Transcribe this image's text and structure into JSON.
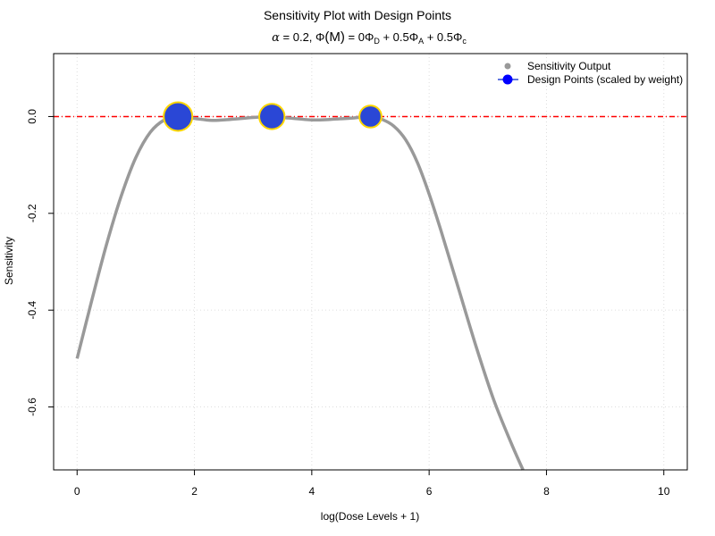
{
  "chart_data": {
    "type": "line",
    "title": "Sensitivity Plot with Design Points",
    "subtitle": {
      "alpha_symbol": "α",
      "alpha_value": " = 0.2, ",
      "phi_symbol": "Φ",
      "m_part": "(M)",
      "eq": " = 0",
      "d_sub": "D",
      "plus_a": " + 0.5",
      "a_sub": "A",
      "plus_c": " + 0.5",
      "c_sub": "c"
    },
    "xlabel": "log(Dose Levels + 1)",
    "ylabel": "Sensitivity",
    "xlim": [
      -0.4,
      10.4
    ],
    "ylim": [
      -0.73,
      0.13
    ],
    "x_ticks": [
      0,
      2,
      4,
      6,
      8,
      10
    ],
    "x_tick_labels": [
      "0",
      "2",
      "4",
      "6",
      "8",
      "10"
    ],
    "y_ticks": [
      0.0,
      -0.2,
      -0.4,
      -0.6
    ],
    "y_tick_labels": [
      "0.0",
      "-0.2",
      "-0.4",
      "-0.6"
    ],
    "grid": true,
    "reference_line": {
      "y": 0,
      "color": "#ff0000",
      "style": "dashed"
    },
    "series": [
      {
        "name": "Sensitivity Output",
        "color": "#999999",
        "x": [
          0.0,
          0.25,
          0.5,
          0.75,
          1.0,
          1.25,
          1.5,
          1.7,
          2.0,
          2.3,
          2.6,
          3.0,
          3.3,
          3.6,
          4.0,
          4.3,
          4.7,
          5.0,
          5.2,
          5.4,
          5.6,
          5.8,
          6.0,
          6.2,
          6.5,
          6.8,
          7.1,
          7.4,
          7.6
        ],
        "y": [
          -0.5,
          -0.38,
          -0.265,
          -0.165,
          -0.085,
          -0.032,
          -0.006,
          0.0,
          -0.004,
          -0.008,
          -0.006,
          -0.002,
          0.0,
          -0.003,
          -0.007,
          -0.006,
          -0.003,
          0.0,
          -0.006,
          -0.02,
          -0.048,
          -0.095,
          -0.16,
          -0.235,
          -0.355,
          -0.475,
          -0.585,
          -0.675,
          -0.73
        ]
      },
      {
        "name": "Design Points (scaled by weight)",
        "color": "#2a47d6",
        "edge_color": "#ffd700",
        "x": [
          1.72,
          3.32,
          5.0
        ],
        "y": [
          0.0,
          0.0,
          0.0
        ],
        "weights": [
          0.42,
          0.33,
          0.25
        ]
      }
    ],
    "legend": {
      "placement": "top-right",
      "items": [
        "Sensitivity Output",
        "Design Points (scaled by weight)"
      ]
    }
  }
}
